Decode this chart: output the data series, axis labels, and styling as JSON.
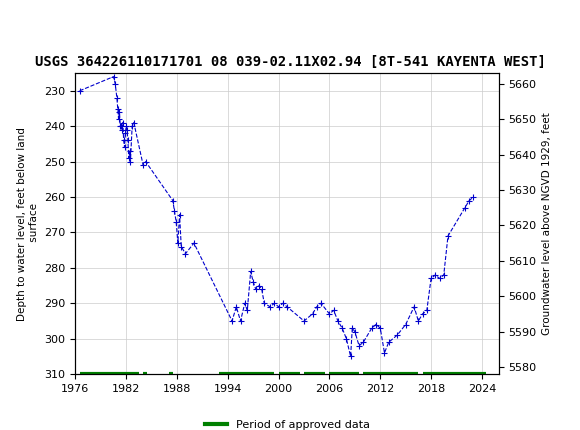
{
  "title": "USGS 364226110171701 08 039-02.11X02.94 [8T-541 KAYENTA WEST]",
  "xlabel": "",
  "ylabel_left": "Depth to water level, feet below land\n surface",
  "ylabel_right": "Groundwater level above NGVD 1929, feet",
  "ylim_left": [
    310,
    225
  ],
  "ylim_right": [
    5578,
    5663
  ],
  "xlim": [
    1976,
    2026
  ],
  "xticks": [
    1976,
    1982,
    1988,
    1994,
    2000,
    2006,
    2012,
    2018,
    2024
  ],
  "yticks_left": [
    230,
    240,
    250,
    260,
    270,
    280,
    290,
    300,
    310
  ],
  "yticks_right": [
    5580,
    5590,
    5600,
    5610,
    5620,
    5630,
    5640,
    5650,
    5660
  ],
  "data_points": [
    [
      1976.5,
      230
    ],
    [
      1980.5,
      226
    ],
    [
      1980.7,
      228
    ],
    [
      1980.9,
      232
    ],
    [
      1981.0,
      235
    ],
    [
      1981.1,
      238
    ],
    [
      1981.2,
      236
    ],
    [
      1981.3,
      240
    ],
    [
      1981.4,
      240
    ],
    [
      1981.5,
      241
    ],
    [
      1981.6,
      239
    ],
    [
      1981.7,
      244
    ],
    [
      1981.8,
      246
    ],
    [
      1981.9,
      242
    ],
    [
      1982.0,
      240
    ],
    [
      1982.1,
      241
    ],
    [
      1982.2,
      244
    ],
    [
      1982.3,
      249
    ],
    [
      1982.4,
      247
    ],
    [
      1982.5,
      250
    ],
    [
      1982.7,
      240
    ],
    [
      1982.9,
      239
    ],
    [
      1984.0,
      251
    ],
    [
      1984.3,
      250
    ],
    [
      1987.5,
      261
    ],
    [
      1987.7,
      264
    ],
    [
      1987.9,
      267
    ],
    [
      1988.1,
      273
    ],
    [
      1988.3,
      265
    ],
    [
      1988.5,
      274
    ],
    [
      1989.0,
      276
    ],
    [
      1990.0,
      273
    ],
    [
      1994.5,
      295
    ],
    [
      1995.0,
      291
    ],
    [
      1995.5,
      295
    ],
    [
      1996.0,
      290
    ],
    [
      1996.3,
      292
    ],
    [
      1996.7,
      281
    ],
    [
      1997.0,
      284
    ],
    [
      1997.3,
      286
    ],
    [
      1997.7,
      285
    ],
    [
      1998.0,
      286
    ],
    [
      1998.3,
      290
    ],
    [
      1999.0,
      291
    ],
    [
      1999.5,
      290
    ],
    [
      2000.0,
      291
    ],
    [
      2000.5,
      290
    ],
    [
      2001.0,
      291
    ],
    [
      2003.0,
      295
    ],
    [
      2004.0,
      293
    ],
    [
      2004.5,
      291
    ],
    [
      2005.0,
      290
    ],
    [
      2006.0,
      293
    ],
    [
      2006.5,
      292
    ],
    [
      2007.0,
      295
    ],
    [
      2007.5,
      297
    ],
    [
      2008.0,
      300
    ],
    [
      2008.5,
      305
    ],
    [
      2008.7,
      297
    ],
    [
      2009.0,
      298
    ],
    [
      2009.5,
      302
    ],
    [
      2010.0,
      301
    ],
    [
      2011.0,
      297
    ],
    [
      2011.5,
      296
    ],
    [
      2012.0,
      297
    ],
    [
      2012.5,
      304
    ],
    [
      2013.0,
      301
    ],
    [
      2014.0,
      299
    ],
    [
      2015.0,
      296
    ],
    [
      2016.0,
      291
    ],
    [
      2016.5,
      295
    ],
    [
      2017.0,
      293
    ],
    [
      2017.5,
      292
    ],
    [
      2018.0,
      283
    ],
    [
      2018.5,
      282
    ],
    [
      2019.0,
      283
    ],
    [
      2019.5,
      282
    ],
    [
      2020.0,
      271
    ],
    [
      2022.0,
      263
    ],
    [
      2022.5,
      261
    ],
    [
      2023.0,
      260
    ]
  ],
  "approved_segments": [
    [
      1976.5,
      1983.5
    ],
    [
      1984.0,
      1984.5
    ],
    [
      1987.0,
      1987.5
    ],
    [
      1993.0,
      1999.5
    ],
    [
      2000.0,
      2002.5
    ],
    [
      2003.0,
      2005.5
    ],
    [
      2006.0,
      2009.5
    ],
    [
      2010.0,
      2016.5
    ],
    [
      2017.0,
      2024.5
    ]
  ],
  "approved_y": 310,
  "line_color": "#0000cc",
  "approved_color": "#008000",
  "background_color": "#ffffff",
  "grid_color": "#cccccc",
  "header_color": "#1a6e3c",
  "title_fontsize": 11,
  "axis_fontsize": 9
}
